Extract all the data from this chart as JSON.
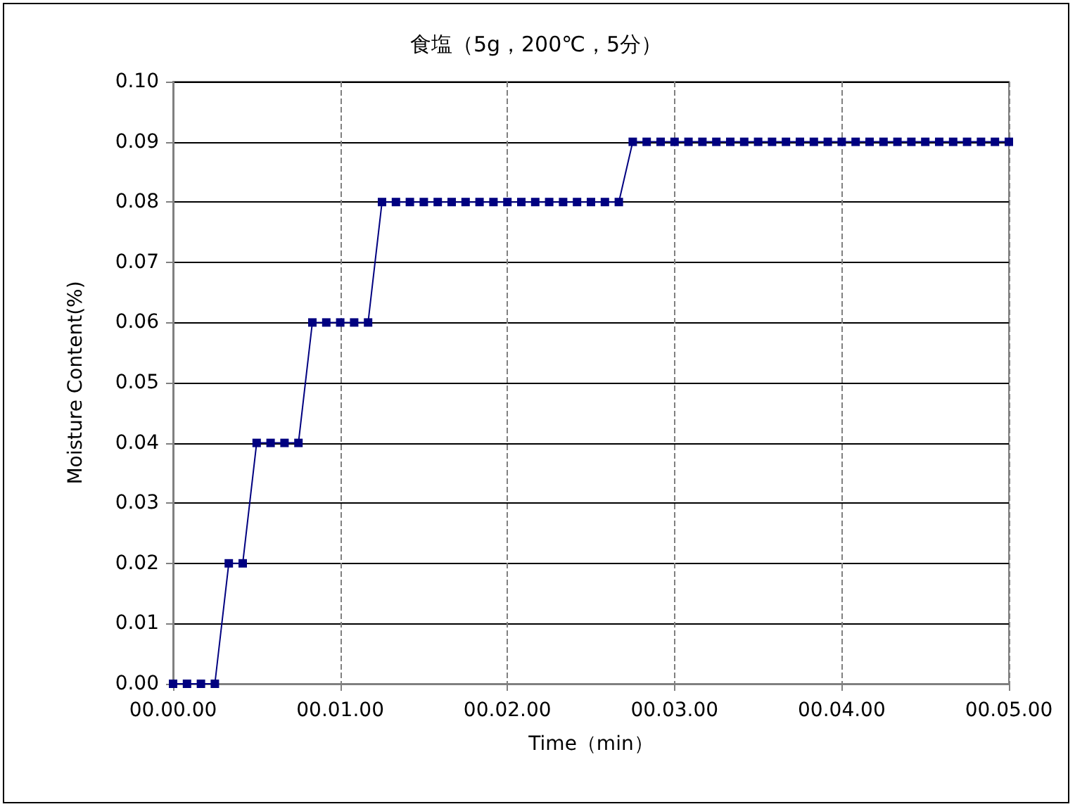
{
  "chart_data": {
    "type": "line",
    "title": "食塩（5g，200℃，5分）",
    "xlabel": "Time（min）",
    "ylabel": "Moisture Content(%)",
    "categories": [
      "00.00.00",
      null,
      null,
      null,
      null,
      null,
      null,
      null,
      null,
      null,
      null,
      null,
      "00.01.00",
      null,
      null,
      null,
      null,
      null,
      null,
      null,
      null,
      null,
      null,
      null,
      "00.02.00",
      null,
      null,
      null,
      null,
      null,
      null,
      null,
      null,
      null,
      null,
      null,
      "00.03.00",
      null,
      null,
      null,
      null,
      null,
      null,
      null,
      null,
      null,
      null,
      null,
      "00.04.00",
      null,
      null,
      null,
      null,
      null,
      null,
      null,
      null,
      null,
      null,
      null,
      "00.05.00"
    ],
    "series": [
      {
        "color": "#000080",
        "values": [
          0,
          0,
          0,
          0,
          0.02,
          0.02,
          0.04,
          0.04,
          0.04,
          0.04,
          0.06,
          0.06,
          0.06,
          0.06,
          0.06,
          0.08,
          0.08,
          0.08,
          0.08,
          0.08,
          0.08,
          0.08,
          0.08,
          0.08,
          0.08,
          0.08,
          0.08,
          0.08,
          0.08,
          0.08,
          0.08,
          0.08,
          0.08,
          0.09,
          0.09,
          0.09,
          0.09,
          0.09,
          0.09,
          0.09,
          0.09,
          0.09,
          0.09,
          0.09,
          0.09,
          0.09,
          0.09,
          0.09,
          0.09,
          0.09,
          0.09,
          0.09,
          0.09,
          0.09,
          0.09,
          0.09,
          0.09,
          0.09,
          0.09,
          0.09,
          0.09
        ]
      }
    ],
    "ylim": [
      0,
      0.1
    ],
    "yticks": [
      {
        "value": 0,
        "label": "0.00"
      },
      {
        "value": 0.01,
        "label": "0.01"
      },
      {
        "value": 0.02,
        "label": "0.02"
      },
      {
        "value": 0.03,
        "label": "0.03"
      },
      {
        "value": 0.04,
        "label": "0.04"
      },
      {
        "value": 0.05,
        "label": "0.05"
      },
      {
        "value": 0.06,
        "label": "0.06"
      },
      {
        "value": 0.07,
        "label": "0.07"
      },
      {
        "value": 0.08,
        "label": "0.08"
      },
      {
        "value": 0.09,
        "label": "0.09"
      },
      {
        "value": 0.1,
        "label": "0.10"
      }
    ],
    "grid": true,
    "marker": "square",
    "line_style": "solid"
  }
}
